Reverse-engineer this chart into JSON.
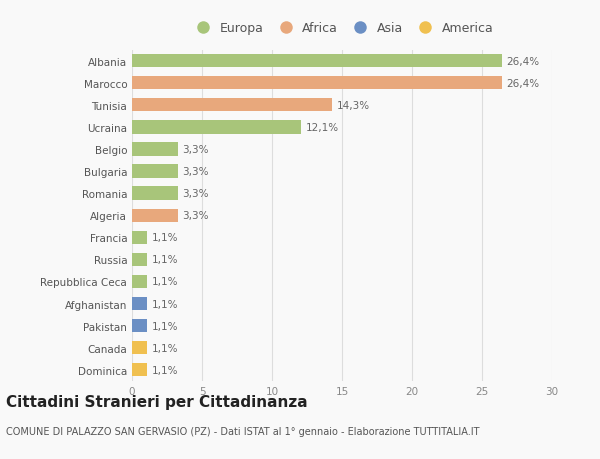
{
  "countries": [
    "Albania",
    "Marocco",
    "Tunisia",
    "Ucraina",
    "Belgio",
    "Bulgaria",
    "Romania",
    "Algeria",
    "Francia",
    "Russia",
    "Repubblica Ceca",
    "Afghanistan",
    "Pakistan",
    "Canada",
    "Dominica"
  ],
  "values": [
    26.4,
    26.4,
    14.3,
    12.1,
    3.3,
    3.3,
    3.3,
    3.3,
    1.1,
    1.1,
    1.1,
    1.1,
    1.1,
    1.1,
    1.1
  ],
  "labels": [
    "26,4%",
    "26,4%",
    "14,3%",
    "12,1%",
    "3,3%",
    "3,3%",
    "3,3%",
    "3,3%",
    "1,1%",
    "1,1%",
    "1,1%",
    "1,1%",
    "1,1%",
    "1,1%",
    "1,1%"
  ],
  "continents": [
    "Europa",
    "Africa",
    "Africa",
    "Europa",
    "Europa",
    "Europa",
    "Europa",
    "Africa",
    "Europa",
    "Europa",
    "Europa",
    "Asia",
    "Asia",
    "America",
    "America"
  ],
  "continent_colors": {
    "Europa": "#a8c57a",
    "Africa": "#e8a87c",
    "Asia": "#6b8fc4",
    "America": "#f0c050"
  },
  "legend_order": [
    "Europa",
    "Africa",
    "Asia",
    "America"
  ],
  "title": "Cittadini Stranieri per Cittadinanza",
  "subtitle": "COMUNE DI PALAZZO SAN GERVASIO (PZ) - Dati ISTAT al 1° gennaio - Elaborazione TUTTITALIA.IT",
  "xlim": [
    0,
    30
  ],
  "xticks": [
    0,
    5,
    10,
    15,
    20,
    25,
    30
  ],
  "background_color": "#f9f9f9",
  "grid_color": "#dddddd",
  "bar_height": 0.6,
  "label_fontsize": 7.5,
  "tick_fontsize": 7.5,
  "title_fontsize": 11,
  "subtitle_fontsize": 7
}
